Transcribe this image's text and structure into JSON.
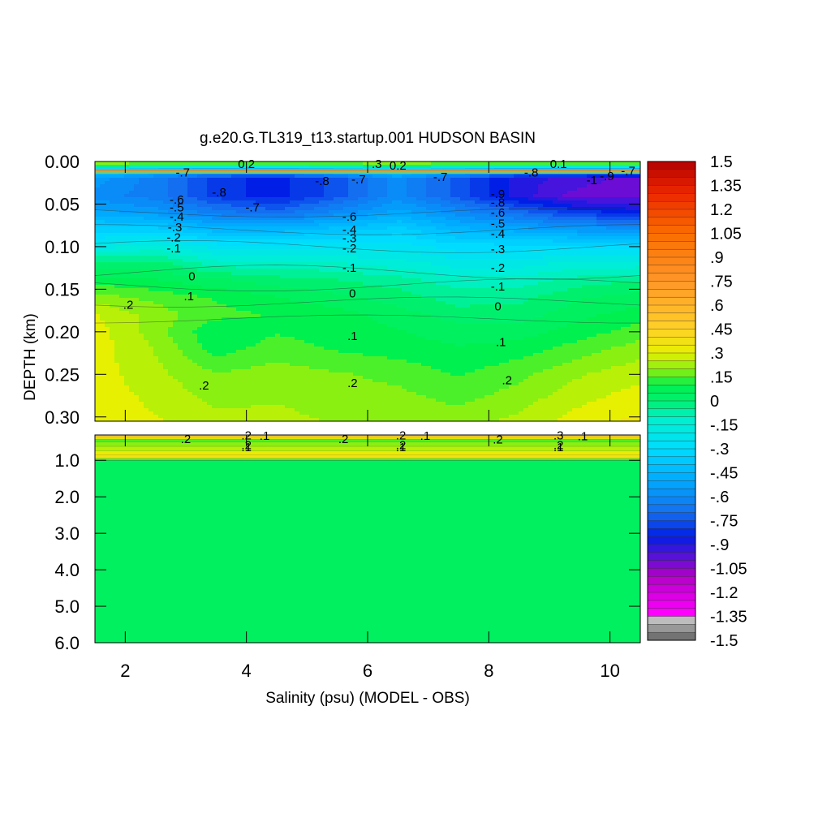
{
  "chart_data": {
    "type": "heatmap",
    "title": "g.e20.G.TL319_t13.startup.001 HUDSON BASIN",
    "xlabel": "Salinity (psu) (MODEL - OBS)",
    "ylabel": "DEPTH (km)",
    "x_range": [
      1.5,
      10.5
    ],
    "x_ticks": [
      "2",
      "4",
      "6",
      "8",
      "10"
    ],
    "upper_panel": {
      "depth_range_km": [
        0.0,
        0.305
      ],
      "y_ticks": [
        "0.00",
        "0.05",
        "0.10",
        "0.15",
        "0.20",
        "0.25",
        "0.30"
      ],
      "x": [
        1.5,
        2.5,
        3.5,
        4.5,
        5.5,
        6.5,
        7.5,
        8.5,
        9.5,
        10.5
      ],
      "depth": [
        0.0,
        0.01,
        0.02,
        0.04,
        0.06,
        0.08,
        0.1,
        0.12,
        0.14,
        0.16,
        0.18,
        0.2,
        0.22,
        0.25,
        0.305
      ],
      "values": [
        [
          0.3,
          0.3,
          0.3,
          0.3,
          0.3,
          0.3,
          0.3,
          0.3,
          0.3,
          0.3
        ],
        [
          -0.3,
          -0.4,
          -0.5,
          -0.5,
          -0.4,
          -0.3,
          -0.4,
          -0.5,
          -0.5,
          -0.5
        ],
        [
          -0.55,
          -0.65,
          -0.8,
          -0.85,
          -0.75,
          -0.6,
          -0.75,
          -0.9,
          -0.95,
          -1.0
        ],
        [
          -0.6,
          -0.65,
          -0.8,
          -0.85,
          -0.75,
          -0.6,
          -0.75,
          -0.9,
          -1.0,
          -1.0
        ],
        [
          -0.5,
          -0.55,
          -0.65,
          -0.7,
          -0.6,
          -0.5,
          -0.6,
          -0.7,
          -0.8,
          -0.85
        ],
        [
          -0.35,
          -0.35,
          -0.45,
          -0.45,
          -0.4,
          -0.35,
          -0.45,
          -0.5,
          -0.55,
          -0.55
        ],
        [
          -0.2,
          -0.15,
          -0.25,
          -0.25,
          -0.25,
          -0.25,
          -0.3,
          -0.3,
          -0.3,
          -0.3
        ],
        [
          0.0,
          0.0,
          -0.1,
          -0.1,
          -0.12,
          -0.15,
          -0.2,
          -0.2,
          -0.15,
          -0.15
        ],
        [
          0.1,
          0.08,
          0.04,
          0.0,
          -0.02,
          -0.05,
          -0.1,
          -0.1,
          -0.05,
          -0.02
        ],
        [
          0.2,
          0.16,
          0.12,
          0.08,
          0.04,
          0.0,
          -0.05,
          -0.04,
          0.02,
          0.05
        ],
        [
          0.28,
          0.2,
          0.14,
          0.12,
          0.1,
          0.05,
          0.0,
          0.0,
          0.06,
          0.1
        ],
        [
          0.3,
          0.2,
          0.08,
          0.12,
          0.1,
          0.08,
          0.05,
          0.05,
          0.1,
          0.15
        ],
        [
          0.3,
          0.22,
          0.1,
          0.15,
          0.12,
          0.1,
          0.08,
          0.1,
          0.15,
          0.2
        ],
        [
          0.3,
          0.24,
          0.18,
          0.2,
          0.18,
          0.16,
          0.12,
          0.16,
          0.22,
          0.26
        ],
        [
          0.32,
          0.28,
          0.24,
          0.24,
          0.22,
          0.22,
          0.2,
          0.24,
          0.3,
          0.34
        ]
      ],
      "contour_labels": [
        ".2",
        ".1",
        "0",
        "-.1",
        "-.2",
        "-.3",
        "-.4",
        "-.5",
        "-.6",
        "-.7",
        "-.8",
        "-.9",
        "-1",
        ".3",
        "0.1"
      ]
    },
    "lower_panel": {
      "depth_range_km": [
        0.305,
        6.0
      ],
      "y_ticks": [
        "1.0",
        "2.0",
        "3.0",
        "4.0",
        "5.0",
        "6.0"
      ],
      "note_values": "near 0.1 to 0.3 at 0.3-1.0 km, ~0.05 below 1.0 km",
      "contour_labels": [
        ".1",
        ".2",
        ".3",
        ".4"
      ]
    },
    "colorbar": {
      "labels": [
        "1.5",
        "1.35",
        "1.2",
        "1.05",
        ".9",
        ".75",
        ".6",
        ".45",
        ".3",
        ".15",
        "0",
        "-.15",
        "-.3",
        "-.45",
        "-.6",
        "-.75",
        "-.9",
        "-1.05",
        "-1.2",
        "-1.35",
        "-1.5"
      ],
      "range": [
        -1.5,
        1.5
      ]
    }
  }
}
